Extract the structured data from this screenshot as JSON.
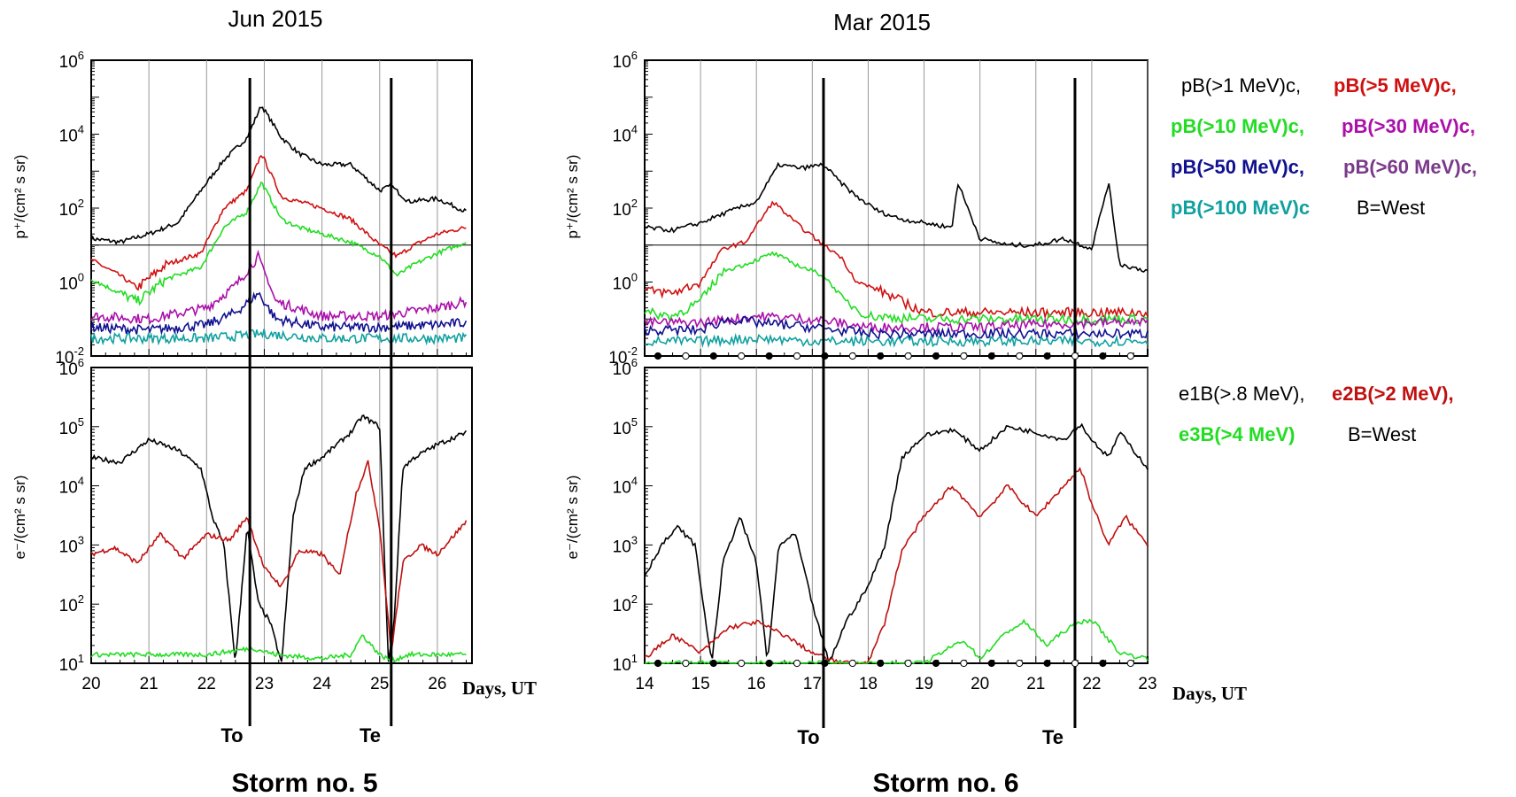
{
  "left_panel": {
    "title": "Jun 2015",
    "storm_label": "Storm no. 5",
    "x_ticks": [
      "20",
      "21",
      "22",
      "23",
      "24",
      "25",
      "26"
    ],
    "days_label": "Days, UT",
    "to_label": "To",
    "te_label": "Te"
  },
  "right_panel": {
    "title": "Mar 2015",
    "storm_label": "Storm no. 6",
    "x_ticks": [
      "14",
      "15",
      "16",
      "17",
      "18",
      "19",
      "20",
      "21",
      "22",
      "23"
    ],
    "days_label": "Days, UT",
    "to_label": "To",
    "te_label": "Te"
  },
  "axes": {
    "proton_ylabel": "p⁺/(cm² s sr)",
    "electron_ylabel": "e⁻/(cm² s sr)",
    "proton_ticks": [
      {
        "base": "10",
        "exp": "6"
      },
      {
        "base": "10",
        "exp": "4"
      },
      {
        "base": "10",
        "exp": "2"
      },
      {
        "base": "10",
        "exp": "0"
      },
      {
        "base": "10",
        "exp": "-2"
      }
    ],
    "electron_ticks": [
      {
        "base": "10",
        "exp": "6"
      },
      {
        "base": "10",
        "exp": "5"
      },
      {
        "base": "10",
        "exp": "4"
      },
      {
        "base": "10",
        "exp": "3"
      },
      {
        "base": "10",
        "exp": "2"
      },
      {
        "base": "10",
        "exp": "1"
      }
    ]
  },
  "legend_protons": [
    {
      "text": "pB(>1 MeV)c,",
      "color": "#000000"
    },
    {
      "text": "pB(>5 MeV)c,",
      "color": "#d01010"
    },
    {
      "text": "pB(>10 MeV)c,",
      "color": "#22dd22"
    },
    {
      "text": "pB(>30 MeV)c,",
      "color": "#aa10aa"
    },
    {
      "text": "pB(>50 MeV)c,",
      "color": "#101090"
    },
    {
      "text": "pB(>60 MeV)c,",
      "color": "#7a3a8a"
    },
    {
      "text": "pB(>100 MeV)c",
      "color": "#10a0a0"
    },
    {
      "text": "B=West",
      "color": "#000000"
    }
  ],
  "legend_electrons": [
    {
      "text": "e1B(>.8 MeV),",
      "color": "#000000"
    },
    {
      "text": "e2B(>2 MeV),",
      "color": "#c01010"
    },
    {
      "text": "e3B(>4 MeV)",
      "color": "#22dd22"
    },
    {
      "text": "B=West",
      "color": "#000000"
    }
  ],
  "chart_data": [
    {
      "type": "line",
      "title": "Jun 2015",
      "panel": "protons",
      "xlabel": "Days, UT",
      "ylabel": "p⁺/(cm² s sr)",
      "yscale": "log",
      "xlim": [
        20,
        26.6
      ],
      "ylim": [
        0.01,
        1000000
      ],
      "reference_line": 10,
      "series": [
        {
          "name": "pB(>1 MeV)c",
          "color": "#000000",
          "x": [
            20,
            20.5,
            21,
            21.5,
            21.9,
            22.3,
            22.7,
            22.95,
            23.3,
            23.6,
            24,
            24.5,
            25,
            25.2,
            25.5,
            26,
            26.5
          ],
          "y": [
            15,
            12,
            20,
            40,
            300,
            2000,
            8000,
            60000,
            8000,
            3000,
            1500,
            1500,
            300,
            400,
            150,
            180,
            80
          ]
        },
        {
          "name": "pB(>5 MeV)c",
          "color": "#d01010",
          "x": [
            20,
            20.5,
            20.8,
            21.3,
            21.9,
            22.3,
            22.7,
            22.95,
            23.3,
            23.6,
            24,
            24.5,
            25,
            25.3,
            25.6,
            26,
            26.5
          ],
          "y": [
            4,
            1.5,
            0.7,
            3,
            6,
            100,
            300,
            3000,
            200,
            150,
            100,
            50,
            10,
            5,
            10,
            20,
            30
          ]
        },
        {
          "name": "pB(>10 MeV)c",
          "color": "#22dd22",
          "x": [
            20,
            20.5,
            20.8,
            21.3,
            21.9,
            22.3,
            22.7,
            22.95,
            23.3,
            23.6,
            24,
            24.5,
            25,
            25.3,
            25.6,
            26,
            26.5
          ],
          "y": [
            1.2,
            0.5,
            0.3,
            1.2,
            2.5,
            30,
            80,
            500,
            50,
            30,
            20,
            12,
            5,
            1.5,
            3,
            6,
            12
          ]
        },
        {
          "name": "pB(>30 MeV)c",
          "color": "#aa10aa",
          "x": [
            20,
            21,
            22,
            22.5,
            22.9,
            23.2,
            24,
            25,
            26,
            26.5
          ],
          "y": [
            0.12,
            0.1,
            0.2,
            0.8,
            5,
            0.3,
            0.12,
            0.12,
            0.2,
            0.3
          ]
        },
        {
          "name": "pB(>50 MeV)c",
          "color": "#101090",
          "x": [
            20,
            21,
            22,
            22.5,
            22.9,
            23.2,
            24,
            25,
            26,
            26.5
          ],
          "y": [
            0.06,
            0.05,
            0.07,
            0.15,
            0.5,
            0.1,
            0.06,
            0.06,
            0.07,
            0.08
          ]
        },
        {
          "name": "pB(>100 MeV)c",
          "color": "#10a0a0",
          "x": [
            20,
            21,
            22,
            23,
            24,
            25,
            26,
            26.5
          ],
          "y": [
            0.03,
            0.03,
            0.03,
            0.04,
            0.03,
            0.03,
            0.03,
            0.03
          ]
        }
      ],
      "markers": [
        {
          "label": "To",
          "x": 22.75
        },
        {
          "label": "Te",
          "x": 25.2
        }
      ]
    },
    {
      "type": "line",
      "title": "Jun 2015",
      "panel": "electrons",
      "xlabel": "Days, UT",
      "ylabel": "e⁻/(cm² s sr)",
      "yscale": "log",
      "xlim": [
        20,
        26.6
      ],
      "ylim": [
        10,
        1000000
      ],
      "series": [
        {
          "name": "e1B(>.8 MeV)",
          "color": "#000000",
          "x": [
            20,
            20.5,
            21,
            21.5,
            21.9,
            22.1,
            22.3,
            22.5,
            22.7,
            22.9,
            23.1,
            23.3,
            23.5,
            23.7,
            24,
            24.5,
            24.7,
            25,
            25.15,
            25.25,
            25.4,
            25.6,
            26,
            26.5
          ],
          "y": [
            30000,
            25000,
            60000,
            40000,
            20000,
            3000,
            1000,
            10,
            2000,
            100,
            50,
            10,
            3000,
            20000,
            30000,
            80000,
            150000,
            100000,
            10,
            50,
            20000,
            30000,
            50000,
            80000
          ]
        },
        {
          "name": "e2B(>2 MeV)",
          "color": "#c01010",
          "x": [
            20,
            20.4,
            20.8,
            21.2,
            21.6,
            22,
            22.4,
            22.7,
            23,
            23.3,
            23.6,
            24,
            24.3,
            24.6,
            24.8,
            25,
            25.2,
            25.4,
            25.7,
            26,
            26.5
          ],
          "y": [
            700,
            900,
            500,
            1500,
            600,
            1500,
            1200,
            3000,
            400,
            200,
            800,
            700,
            300,
            8000,
            25000,
            2000,
            15,
            500,
            1000,
            700,
            2500
          ]
        },
        {
          "name": "e3B(>4 MeV)",
          "color": "#22dd22",
          "x": [
            20,
            21,
            22,
            22.8,
            23.2,
            24,
            24.5,
            24.7,
            25,
            25.2,
            25.5,
            26,
            26.5
          ],
          "y": [
            14,
            14,
            14,
            18,
            14,
            12,
            14,
            30,
            14,
            11,
            14,
            14,
            14
          ]
        }
      ],
      "markers": [
        {
          "label": "To",
          "x": 22.75
        },
        {
          "label": "Te",
          "x": 25.2
        }
      ]
    },
    {
      "type": "line",
      "title": "Mar 2015",
      "panel": "protons",
      "xlabel": "Days, UT",
      "ylabel": "p⁺/(cm² s sr)",
      "yscale": "log",
      "xlim": [
        14,
        23
      ],
      "ylim": [
        0.01,
        1000000
      ],
      "reference_line": 10,
      "series": [
        {
          "name": "pB(>1 MeV)c",
          "color": "#000000",
          "x": [
            14,
            14.5,
            15,
            15.5,
            16,
            16.4,
            16.8,
            17.2,
            17.5,
            17.8,
            18.2,
            18.6,
            19,
            19.5,
            19.6,
            20,
            20.5,
            21,
            21.5,
            22,
            22.3,
            22.5,
            23
          ],
          "y": [
            30,
            25,
            40,
            80,
            150,
            1500,
            1200,
            1500,
            500,
            200,
            80,
            50,
            40,
            30,
            500,
            15,
            10,
            10,
            15,
            8,
            500,
            3,
            2
          ]
        },
        {
          "name": "pB(>5 MeV)c",
          "color": "#d01010",
          "x": [
            14,
            14.5,
            15,
            15.4,
            15.8,
            16.3,
            16.7,
            17.2,
            17.5,
            17.8,
            18.2,
            18.6,
            19,
            20,
            21,
            22,
            23
          ],
          "y": [
            0.6,
            0.5,
            1,
            8,
            12,
            150,
            40,
            10,
            5,
            1,
            0.6,
            0.3,
            0.15,
            0.15,
            0.15,
            0.15,
            0.15
          ]
        },
        {
          "name": "pB(>10 MeV)c",
          "color": "#22dd22",
          "x": [
            14,
            14.5,
            15,
            15.4,
            15.8,
            16.3,
            16.7,
            17.2,
            17.6,
            18,
            19,
            20,
            21,
            22,
            23
          ],
          "y": [
            0.15,
            0.12,
            0.3,
            2,
            3,
            6,
            3,
            1.5,
            0.3,
            0.12,
            0.1,
            0.1,
            0.1,
            0.1,
            0.1
          ]
        },
        {
          "name": "pB(>30 MeV)c",
          "color": "#aa10aa",
          "x": [
            14,
            15,
            16,
            17,
            18,
            19,
            20,
            21,
            22,
            23
          ],
          "y": [
            0.08,
            0.08,
            0.12,
            0.1,
            0.06,
            0.06,
            0.06,
            0.07,
            0.08,
            0.08
          ]
        },
        {
          "name": "pB(>50 MeV)c",
          "color": "#101090",
          "x": [
            14,
            15,
            15.5,
            16,
            17,
            18,
            19,
            20,
            21,
            22,
            23
          ],
          "y": [
            0.05,
            0.05,
            0.1,
            0.08,
            0.06,
            0.04,
            0.04,
            0.04,
            0.04,
            0.04,
            0.04
          ]
        },
        {
          "name": "pB(>100 MeV)c",
          "color": "#10a0a0",
          "x": [
            14,
            15,
            16,
            17,
            18,
            19,
            20,
            21,
            22,
            23
          ],
          "y": [
            0.025,
            0.025,
            0.03,
            0.025,
            0.025,
            0.025,
            0.025,
            0.025,
            0.025,
            0.025
          ]
        }
      ],
      "markers": [
        {
          "label": "To",
          "x": 17.2
        },
        {
          "label": "Te",
          "x": 21.7
        }
      ]
    },
    {
      "type": "line",
      "title": "Mar 2015",
      "panel": "electrons",
      "xlabel": "Days, UT",
      "ylabel": "e⁻/(cm² s sr)",
      "yscale": "log",
      "xlim": [
        14,
        23
      ],
      "ylim": [
        10,
        1000000
      ],
      "series": [
        {
          "name": "e1B(>.8 MeV)",
          "color": "#000000",
          "x": [
            14,
            14.3,
            14.6,
            14.9,
            15.2,
            15.4,
            15.7,
            16,
            16.2,
            16.4,
            16.7,
            17,
            17.3,
            17.6,
            18,
            18.3,
            18.6,
            19,
            19.5,
            20,
            20.5,
            21,
            21.5,
            21.8,
            22,
            22.3,
            22.5,
            23
          ],
          "y": [
            300,
            1000,
            2000,
            1000,
            10,
            500,
            3000,
            500,
            10,
            1000,
            1500,
            100,
            10,
            50,
            200,
            1000,
            30000,
            70000,
            90000,
            40000,
            100000,
            80000,
            60000,
            110000,
            60000,
            30000,
            80000,
            20000
          ]
        },
        {
          "name": "e2B(>2 MeV)",
          "color": "#c01010",
          "x": [
            14,
            14.5,
            15,
            15.5,
            16,
            16.5,
            17,
            17.5,
            18,
            18.3,
            18.6,
            19,
            19.5,
            20,
            20.5,
            21,
            21.5,
            21.8,
            22,
            22.3,
            22.6,
            23
          ],
          "y": [
            12,
            30,
            15,
            40,
            50,
            30,
            15,
            10,
            10,
            50,
            800,
            3000,
            10000,
            3000,
            10000,
            3000,
            10000,
            20000,
            5000,
            1000,
            3000,
            1000
          ]
        },
        {
          "name": "e3B(>4 MeV)",
          "color": "#22dd22",
          "x": [
            14,
            15,
            16,
            17,
            18,
            19,
            19.7,
            20,
            20.5,
            20.8,
            21.2,
            21.5,
            21.8,
            22,
            22.5,
            23
          ],
          "y": [
            10,
            10,
            10,
            10,
            10,
            10,
            25,
            12,
            35,
            50,
            20,
            35,
            50,
            55,
            15,
            12
          ]
        }
      ],
      "markers": [
        {
          "label": "To",
          "x": 17.2
        },
        {
          "label": "Te",
          "x": 21.7
        }
      ]
    }
  ]
}
